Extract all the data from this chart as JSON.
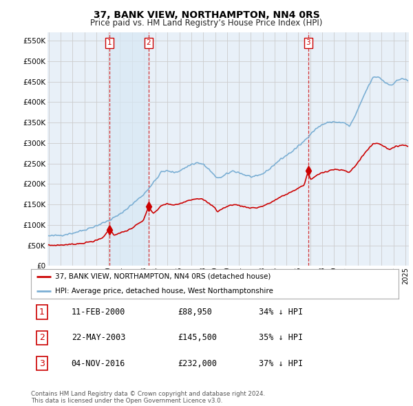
{
  "title": "37, BANK VIEW, NORTHAMPTON, NN4 0RS",
  "subtitle": "Price paid vs. HM Land Registry’s House Price Index (HPI)",
  "ylabel_ticks": [
    "£0",
    "£50K",
    "£100K",
    "£150K",
    "£200K",
    "£250K",
    "£300K",
    "£350K",
    "£400K",
    "£450K",
    "£500K",
    "£550K"
  ],
  "ytick_vals": [
    0,
    50000,
    100000,
    150000,
    200000,
    250000,
    300000,
    350000,
    400000,
    450000,
    500000,
    550000
  ],
  "xmin": 1994.9,
  "xmax": 2025.3,
  "ymin": 0,
  "ymax": 570000,
  "sale_dates": [
    2000.12,
    2003.39,
    2016.84
  ],
  "sale_prices": [
    88950,
    145500,
    232000
  ],
  "sale_labels": [
    "1",
    "2",
    "3"
  ],
  "red_color": "#cc0000",
  "blue_color": "#7bafd4",
  "shade_color": "#d8e8f5",
  "grid_color": "#cccccc",
  "bg_color": "#e8f0f8",
  "legend_line1": "37, BANK VIEW, NORTHAMPTON, NN4 0RS (detached house)",
  "legend_line2": "HPI: Average price, detached house, West Northamptonshire",
  "table_rows": [
    [
      "1",
      "11-FEB-2000",
      "£88,950",
      "34% ↓ HPI"
    ],
    [
      "2",
      "22-MAY-2003",
      "£145,500",
      "35% ↓ HPI"
    ],
    [
      "3",
      "04-NOV-2016",
      "£232,000",
      "37% ↓ HPI"
    ]
  ],
  "footnote": "Contains HM Land Registry data © Crown copyright and database right 2024.\nThis data is licensed under the Open Government Licence v3.0."
}
